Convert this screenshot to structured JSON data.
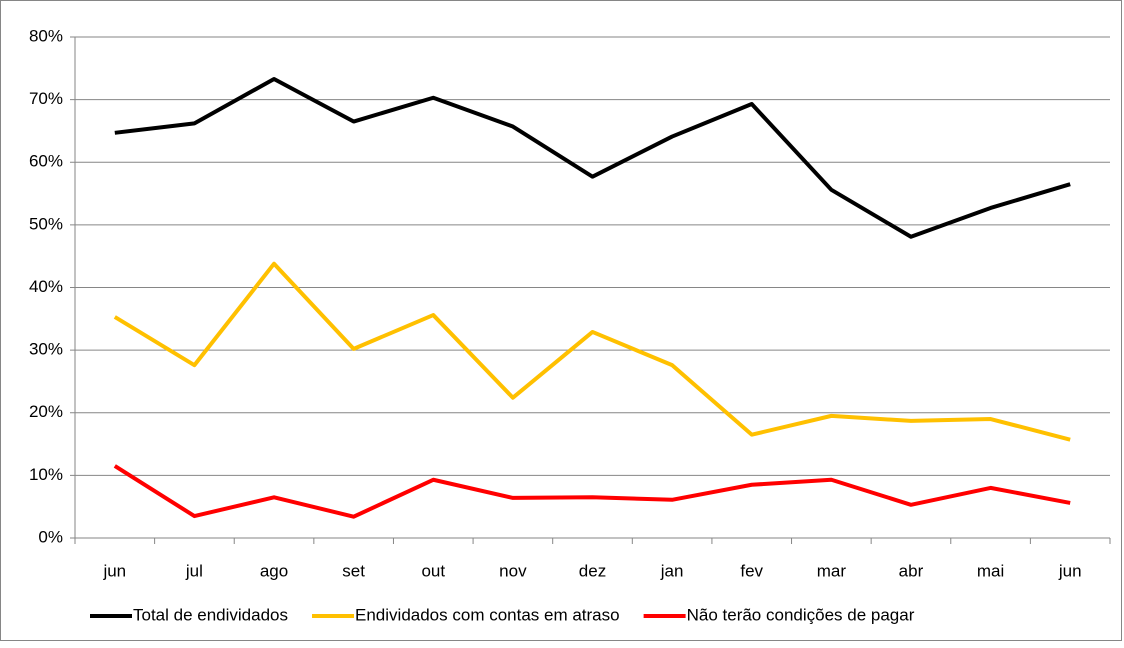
{
  "chart_data": {
    "type": "line",
    "categories": [
      "jun",
      "jul",
      "ago",
      "set",
      "out",
      "nov",
      "dez",
      "jan",
      "fev",
      "mar",
      "abr",
      "mai",
      "jun"
    ],
    "series": [
      {
        "name": "Total de endividados",
        "color": "#000000",
        "values": [
          64.7,
          66.2,
          73.3,
          66.5,
          70.3,
          65.7,
          57.7,
          64.1,
          69.3,
          55.6,
          48.1,
          52.7,
          56.5
        ]
      },
      {
        "name": "Endividados com contas em atraso",
        "color": "#ffc000",
        "values": [
          35.3,
          27.6,
          43.8,
          30.2,
          35.6,
          22.4,
          32.9,
          27.6,
          16.5,
          19.5,
          18.7,
          19.0,
          15.7
        ]
      },
      {
        "name": "Não terão condições de pagar",
        "color": "#ff0000",
        "values": [
          11.5,
          3.5,
          6.5,
          3.4,
          9.3,
          6.4,
          6.5,
          6.1,
          8.5,
          9.3,
          5.3,
          8.0,
          5.6
        ]
      }
    ],
    "ylim": [
      0,
      80
    ],
    "yticks": [
      {
        "value": 0,
        "label": "0%"
      },
      {
        "value": 10,
        "label": "10%"
      },
      {
        "value": 20,
        "label": "20%"
      },
      {
        "value": 30,
        "label": "30%"
      },
      {
        "value": 40,
        "label": "40%"
      },
      {
        "value": 50,
        "label": "50%"
      },
      {
        "value": 60,
        "label": "60%"
      },
      {
        "value": 70,
        "label": "70%"
      },
      {
        "value": 80,
        "label": "80%"
      }
    ],
    "grid": true,
    "legend": "bottom"
  }
}
